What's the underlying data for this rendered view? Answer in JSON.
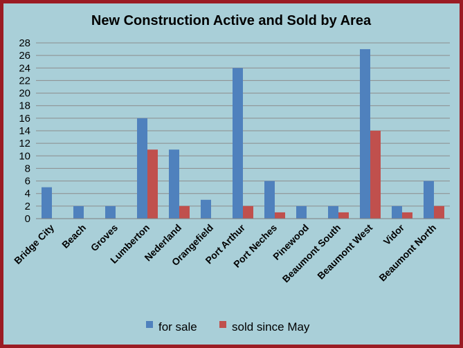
{
  "chart_data": {
    "type": "bar",
    "title": "New Construction Active and Sold by Area",
    "xlabel": "",
    "ylabel": "",
    "categories": [
      "Bridge City",
      "Beach",
      "Groves",
      "Lumberton",
      "Nederland",
      "Orangefield",
      "Port Arthur",
      "Port Neches",
      "Pinewood",
      "Beaumont South",
      "Beaumont West",
      "Vidor",
      "Beaumont North"
    ],
    "series": [
      {
        "name": "for sale",
        "color": "#4f81bd",
        "values": [
          5,
          2,
          2,
          16,
          11,
          3,
          24,
          6,
          2,
          2,
          27,
          2,
          6
        ]
      },
      {
        "name": "sold since  May",
        "color": "#c0504d",
        "values": [
          0,
          0,
          0,
          11,
          2,
          0,
          2,
          1,
          0,
          1,
          14,
          1,
          2
        ]
      }
    ],
    "ylim": [
      0,
      28
    ],
    "yticks": [
      0,
      2,
      4,
      6,
      8,
      10,
      12,
      14,
      16,
      18,
      20,
      22,
      24,
      26,
      28
    ],
    "grid": true,
    "legend": "bottom",
    "background_color": "#a9cfd8",
    "border_color": "#9b1c24"
  }
}
